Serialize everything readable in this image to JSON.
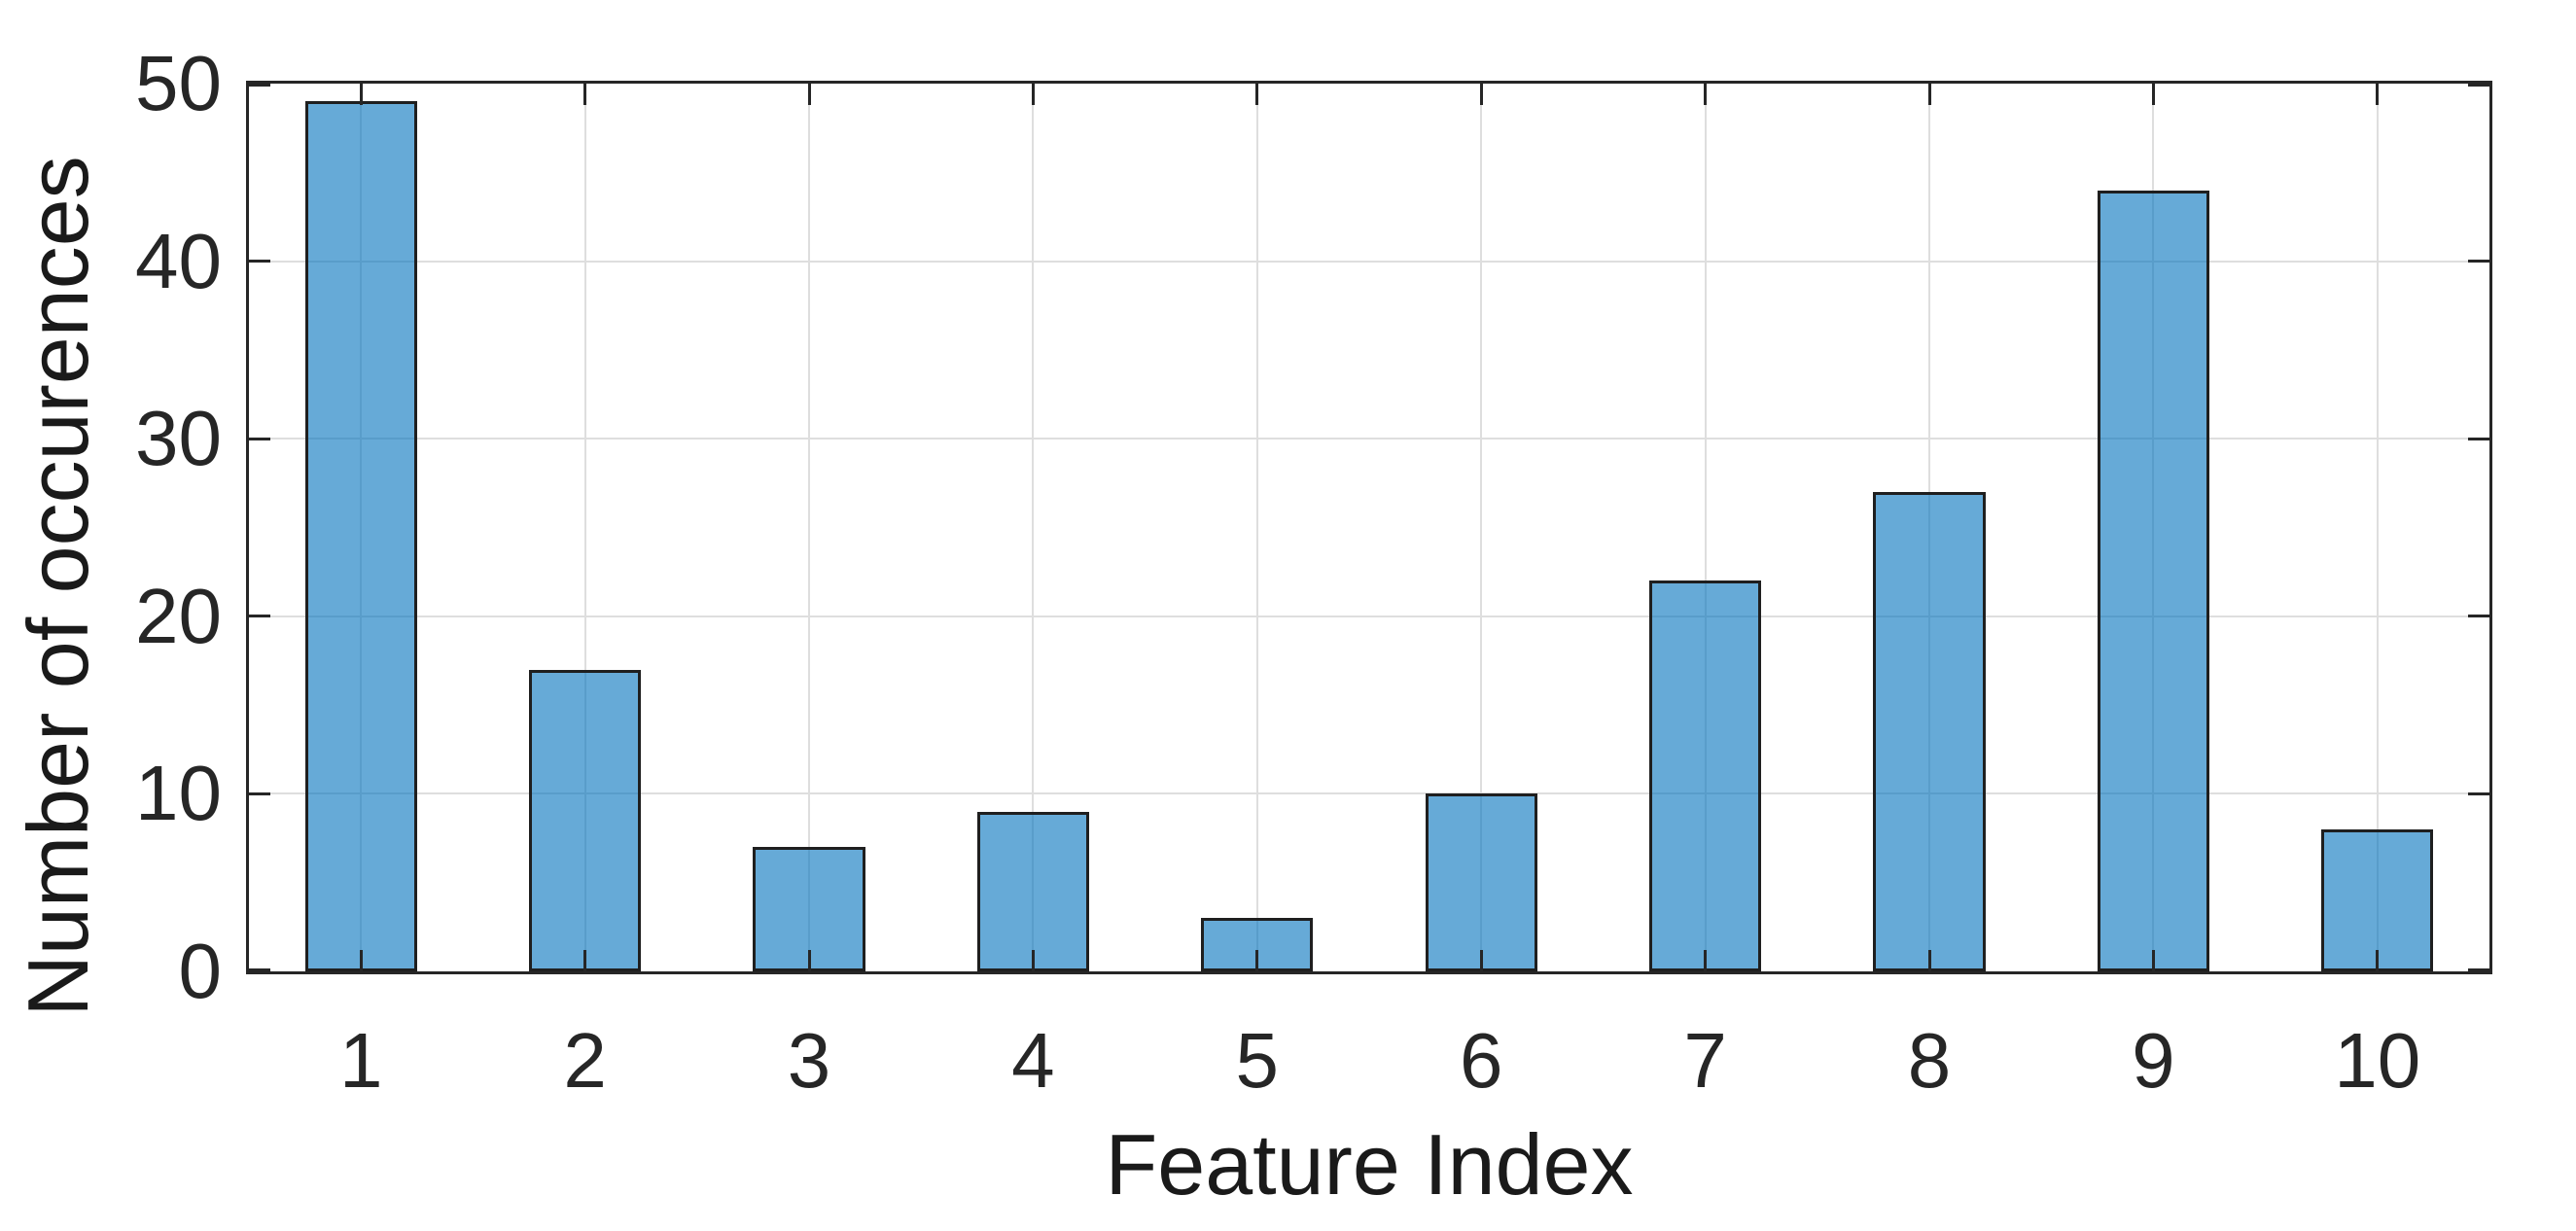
{
  "chart_data": {
    "type": "bar",
    "title": "",
    "xlabel": "Feature Index",
    "ylabel": "Number of occurences",
    "categories": [
      "1",
      "2",
      "3",
      "4",
      "5",
      "6",
      "7",
      "8",
      "9",
      "10"
    ],
    "values": [
      49,
      17,
      7,
      9,
      3,
      10,
      22,
      27,
      44,
      8
    ],
    "ylim": [
      0,
      50
    ],
    "yticks": [
      0,
      10,
      20,
      30,
      40,
      50
    ],
    "grid": true,
    "legend_position": "none",
    "bar_width_fraction": 0.5,
    "colors": {
      "bar_fill": "#0072BD",
      "bar_fill_alpha": 0.6,
      "bar_edge": "#1f1f1f",
      "axis": "#262626",
      "grid": "#dedede",
      "text": "#262626",
      "background": "#ffffff"
    }
  }
}
